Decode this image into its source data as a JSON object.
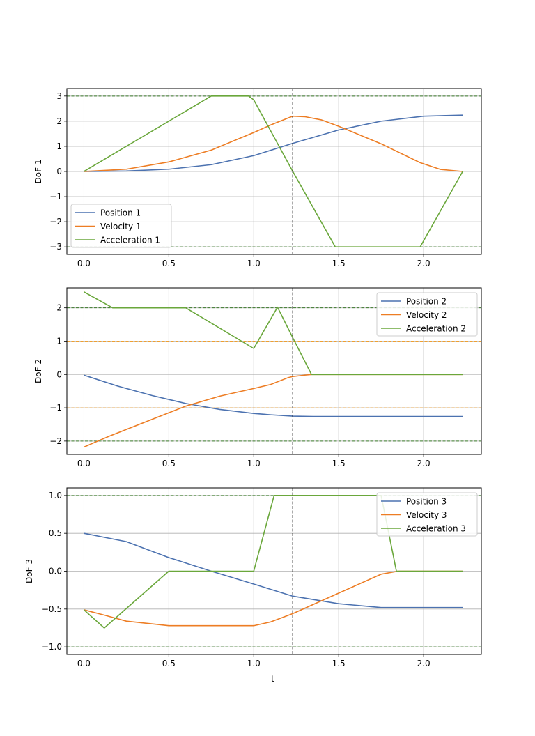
{
  "colors": {
    "position": "#4c72b0",
    "velocity": "#ed7d24",
    "acceleration": "#6aa73b",
    "limit_acceleration": "#3b7a2a",
    "limit_velocity": "#f0a030",
    "grid": "#b0b0b0",
    "marker": "#000000"
  },
  "chart_data": [
    {
      "type": "line",
      "ylabel": "DoF 1",
      "xlabel": "",
      "xlim": [
        -0.1,
        2.34
      ],
      "ylim": [
        -3.3,
        3.3
      ],
      "xticks": [
        "0.0",
        "0.5",
        "1.0",
        "1.5",
        "2.0"
      ],
      "xtick_values": [
        0,
        0.5,
        1.0,
        1.5,
        2.0
      ],
      "yticks": [
        "3",
        "2",
        "1",
        "0",
        "−1",
        "−2",
        "−3"
      ],
      "ytick_values": [
        3,
        2,
        1,
        0,
        -1,
        -2,
        -3
      ],
      "grid": true,
      "legend_position": "lower-left",
      "vline_x": 1.23,
      "limits": [
        {
          "y": 3,
          "kind": "acceleration"
        },
        {
          "y": -3,
          "kind": "acceleration"
        }
      ],
      "series": [
        {
          "name": "Position 1",
          "kind": "position",
          "x": [
            0.0,
            0.25,
            0.5,
            0.75,
            1.0,
            1.23,
            1.5,
            1.75,
            2.0,
            2.23
          ],
          "y": [
            0.0,
            0.02,
            0.09,
            0.27,
            0.63,
            1.12,
            1.65,
            2.0,
            2.2,
            2.24
          ]
        },
        {
          "name": "Velocity 1",
          "kind": "velocity",
          "x": [
            0.0,
            0.25,
            0.5,
            0.75,
            1.0,
            1.1,
            1.23,
            1.3,
            1.4,
            1.5,
            1.75,
            1.98,
            2.1,
            2.23
          ],
          "y": [
            0.0,
            0.09,
            0.38,
            0.85,
            1.55,
            1.85,
            2.2,
            2.18,
            2.05,
            1.8,
            1.1,
            0.35,
            0.08,
            0.0
          ]
        },
        {
          "name": "Acceleration 1",
          "kind": "acceleration",
          "x": [
            0.0,
            0.75,
            0.97,
            1.0,
            1.23,
            1.48,
            1.98,
            2.23
          ],
          "y": [
            0.0,
            3.0,
            3.0,
            2.85,
            0.0,
            -3.0,
            -3.0,
            0.0
          ]
        }
      ]
    },
    {
      "type": "line",
      "ylabel": "DoF 2",
      "xlabel": "",
      "xlim": [
        -0.1,
        2.34
      ],
      "ylim": [
        -2.4,
        2.6
      ],
      "xticks": [
        "0.0",
        "0.5",
        "1.0",
        "1.5",
        "2.0"
      ],
      "xtick_values": [
        0,
        0.5,
        1.0,
        1.5,
        2.0
      ],
      "yticks": [
        "2",
        "1",
        "0",
        "−1",
        "−2"
      ],
      "ytick_values": [
        2,
        1,
        0,
        -1,
        -2
      ],
      "grid": true,
      "legend_position": "top-right",
      "vline_x": 1.23,
      "limits": [
        {
          "y": 2,
          "kind": "acceleration"
        },
        {
          "y": -2,
          "kind": "acceleration"
        },
        {
          "y": 1,
          "kind": "velocity"
        },
        {
          "y": -1,
          "kind": "velocity"
        }
      ],
      "series": [
        {
          "name": "Position 2",
          "kind": "position",
          "x": [
            0.0,
            0.2,
            0.4,
            0.6,
            0.8,
            1.0,
            1.1,
            1.23,
            1.35,
            1.5,
            2.0,
            2.23
          ],
          "y": [
            -0.02,
            -0.35,
            -0.63,
            -0.87,
            -1.05,
            -1.17,
            -1.21,
            -1.25,
            -1.26,
            -1.26,
            -1.26,
            -1.26
          ]
        },
        {
          "name": "Velocity 2",
          "kind": "velocity",
          "x": [
            0.0,
            0.15,
            0.6,
            0.8,
            1.0,
            1.1,
            1.2,
            1.23,
            1.3,
            1.34,
            2.23
          ],
          "y": [
            -2.18,
            -1.85,
            -0.95,
            -0.65,
            -0.42,
            -0.3,
            -0.1,
            -0.06,
            -0.02,
            0.0,
            0.0
          ]
        },
        {
          "name": "Acceleration 2",
          "kind": "acceleration",
          "x": [
            0.0,
            0.17,
            0.6,
            1.0,
            1.14,
            1.23,
            1.34,
            2.23
          ],
          "y": [
            2.48,
            2.0,
            2.0,
            0.78,
            2.02,
            1.1,
            0.0,
            0.0
          ]
        }
      ]
    },
    {
      "type": "line",
      "ylabel": "DoF 3",
      "xlabel": "t",
      "xlim": [
        -0.1,
        2.34
      ],
      "ylim": [
        -1.1,
        1.1
      ],
      "xticks": [
        "0.0",
        "0.5",
        "1.0",
        "1.5",
        "2.0"
      ],
      "xtick_values": [
        0,
        0.5,
        1.0,
        1.5,
        2.0
      ],
      "yticks": [
        "1.0",
        "0.5",
        "0.0",
        "−0.5",
        "−1.0"
      ],
      "ytick_values": [
        1.0,
        0.5,
        0.0,
        -0.5,
        -1.0
      ],
      "grid": true,
      "legend_position": "top-right",
      "vline_x": 1.23,
      "limits": [
        {
          "y": 1,
          "kind": "acceleration"
        },
        {
          "y": -1,
          "kind": "acceleration"
        }
      ],
      "series": [
        {
          "name": "Position 3",
          "kind": "position",
          "x": [
            0.0,
            0.25,
            0.5,
            0.75,
            1.0,
            1.23,
            1.5,
            1.75,
            2.0,
            2.23
          ],
          "y": [
            0.5,
            0.39,
            0.18,
            0.0,
            -0.17,
            -0.33,
            -0.43,
            -0.48,
            -0.48,
            -0.48
          ]
        },
        {
          "name": "Velocity 3",
          "kind": "velocity",
          "x": [
            0.0,
            0.12,
            0.25,
            0.5,
            0.75,
            1.0,
            1.1,
            1.23,
            1.5,
            1.75,
            1.85,
            2.23
          ],
          "y": [
            -0.51,
            -0.58,
            -0.66,
            -0.72,
            -0.72,
            -0.72,
            -0.67,
            -0.56,
            -0.29,
            -0.04,
            0.0,
            0.0
          ]
        },
        {
          "name": "Acceleration 3",
          "kind": "acceleration",
          "x": [
            0.0,
            0.12,
            0.5,
            1.0,
            1.12,
            1.75,
            1.84,
            2.23
          ],
          "y": [
            -0.51,
            -0.75,
            0.0,
            0.0,
            1.0,
            1.0,
            0.0,
            0.0
          ]
        }
      ]
    }
  ]
}
